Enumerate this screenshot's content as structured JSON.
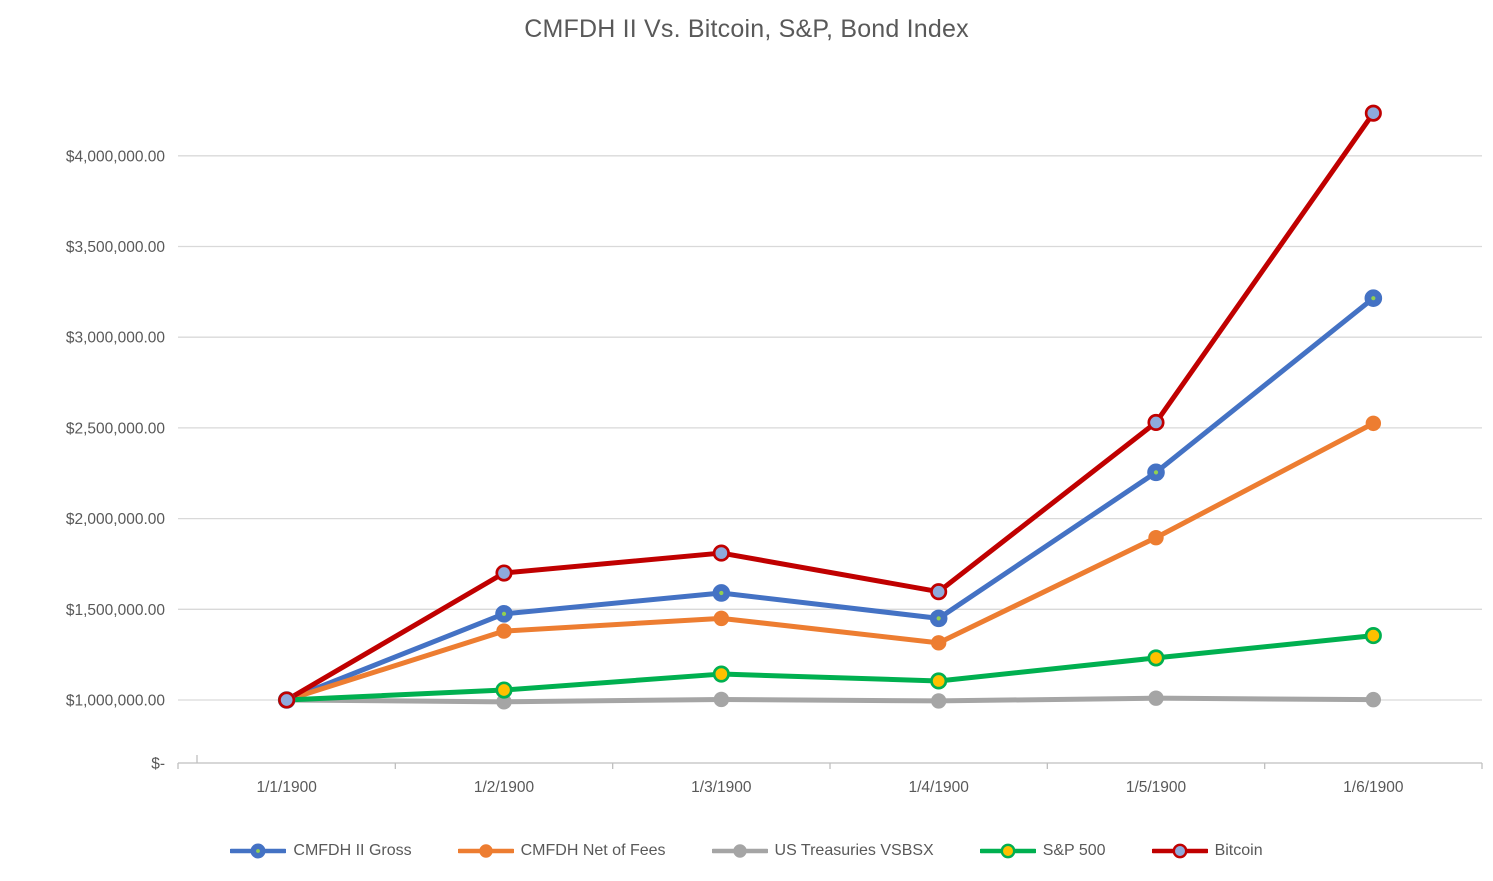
{
  "title": "CMFDH II Vs. Bitcoin, S&P, Bond Index",
  "colors": {
    "background": "#ffffff",
    "title_text": "#595959",
    "axis_text": "#595959",
    "gridline": "#d9d9d9",
    "axis_line": "#bfbfbf"
  },
  "chart_data": {
    "type": "line",
    "title": "CMFDH II Vs. Bitcoin, S&P, Bond Index",
    "categories": [
      "1/1/1900",
      "1/2/1900",
      "1/3/1900",
      "1/4/1900",
      "1/5/1900",
      "1/6/1900"
    ],
    "series": [
      {
        "name": "CMFDH II Gross",
        "color": "#4472C4",
        "marker": {
          "fill": "#4472C4",
          "stroke": "#4472C4",
          "center_dot": "#92D050"
        },
        "values": [
          1000000,
          1475000,
          1590000,
          1450000,
          2255000,
          3215000
        ]
      },
      {
        "name": "CMFDH Net of Fees",
        "color": "#ED7D31",
        "marker": {
          "fill": "#ED7D31",
          "stroke": "#ED7D31"
        },
        "values": [
          1000000,
          1380000,
          1450000,
          1315000,
          1895000,
          2525000
        ]
      },
      {
        "name": "US Treasuries VSBSX",
        "color": "#A5A5A5",
        "marker": {
          "fill": "#A5A5A5",
          "stroke": "#A5A5A5"
        },
        "values": [
          1000000,
          990000,
          1003000,
          995000,
          1010000,
          1002000
        ]
      },
      {
        "name": "S&P 500",
        "color": "#00B050",
        "marker": {
          "fill": "#FFC000",
          "stroke": "#00B050"
        },
        "values": [
          1000000,
          1055000,
          1143000,
          1105000,
          1232000,
          1355000
        ]
      },
      {
        "name": "Bitcoin",
        "color": "#C00000",
        "marker": {
          "fill": "#8EAADB",
          "stroke": "#C00000"
        },
        "values": [
          1000000,
          1700000,
          1810000,
          1597000,
          2530000,
          4235000
        ]
      }
    ],
    "y_axis": {
      "tick_labels": [
        "$4,000,000.00",
        "$3,500,000.00",
        "$3,000,000.00",
        "$2,500,000.00",
        "$2,000,000.00",
        "$1,500,000.00",
        "$1,000,000.00"
      ],
      "tick_values": [
        4000000,
        3500000,
        3000000,
        2500000,
        2000000,
        1500000,
        1000000
      ],
      "zero_label": "$-",
      "major_unit": 500000,
      "number_format": "accounting"
    },
    "x_axis": {
      "label_format": "date"
    },
    "grid": true,
    "legend_position": "bottom"
  }
}
